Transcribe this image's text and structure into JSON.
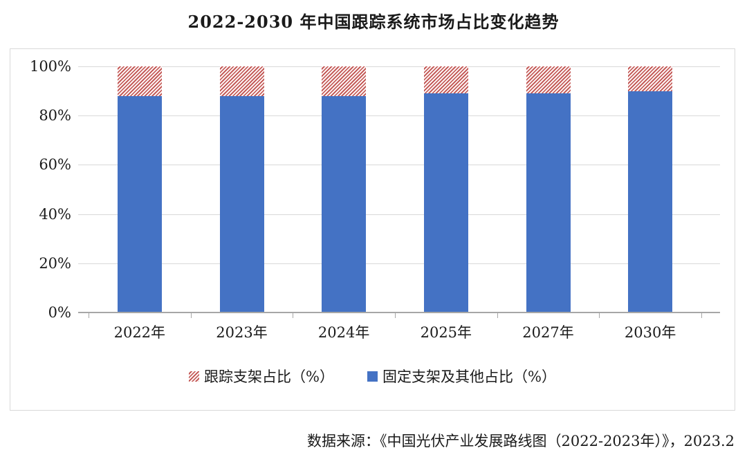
{
  "title": "2022-2030 年中国跟踪系统市场占比变化趋势",
  "source_note": "数据来源：《中国光伏产业发展路线图（2022-2023年）》，2023.2",
  "colors": {
    "fixed_bar": "#4472c4",
    "tracking_hatch_line": "#bf4f4c",
    "tracking_hatch_bg": "#fbf0f0",
    "gridline": "#d9d9d9",
    "axis": "#a6a6a6",
    "frame_border": "#d9d9d9"
  },
  "chart_data": {
    "type": "bar",
    "stacked": true,
    "title": "2022-2030 年中国跟踪系统市场占比变化趋势",
    "categories": [
      "2022年",
      "2023年",
      "2024年",
      "2025年",
      "2027年",
      "2030年"
    ],
    "series": [
      {
        "name": "跟踪支架占比（%）",
        "style": "red-hatch",
        "values": [
          12,
          12,
          12,
          11,
          11,
          10
        ]
      },
      {
        "name": "固定支架及其他占比（%）",
        "style": "solid-blue",
        "values": [
          88,
          88,
          88,
          89,
          89,
          90
        ]
      }
    ],
    "xlabel": "",
    "ylabel": "",
    "ylim": [
      0,
      100
    ],
    "yticks": [
      "100%",
      "80%",
      "60%",
      "40%",
      "20%",
      "0%"
    ],
    "grid": true,
    "legend_position": "bottom"
  }
}
